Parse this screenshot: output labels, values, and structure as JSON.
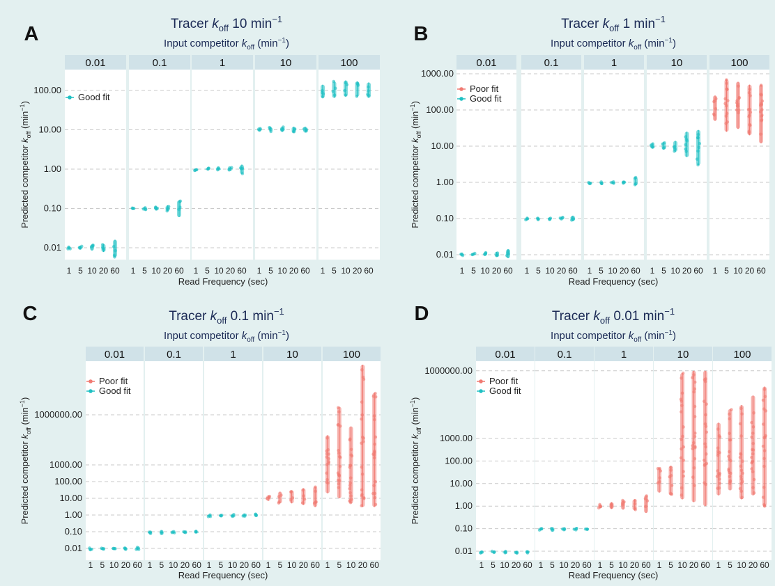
{
  "colors": {
    "poor": "#f07a72",
    "good": "#1fc0c3",
    "background": "#e3f0f0",
    "strip": "#d0e2e8"
  },
  "chart_data": [
    {
      "type": "scatter",
      "panel_label": "A",
      "title": "Tracer k_off 10 min⁻¹",
      "title_parts": [
        "Tracer ",
        "k",
        "off",
        " 10 min",
        "−1"
      ],
      "facet_title": "Input competitor k_off (min⁻¹)",
      "facet_title_parts": [
        "Input competitor ",
        "k",
        "off",
        " (min",
        "−1",
        ")"
      ],
      "facets": [
        "0.01",
        "0.1",
        "1",
        "10",
        "100"
      ],
      "x_categories": [
        "1",
        "5",
        "10",
        "20",
        "60"
      ],
      "xlabel": "Read Frequency (sec)",
      "ylabel": "Predicted competitor k_off (min⁻¹)",
      "ylabel_parts": [
        "Predicted competitor ",
        "k",
        "off",
        " (min",
        "−1",
        ")"
      ],
      "y_scale": "log10",
      "y_ticks": [
        "0.01",
        "0.10",
        "1.00",
        "10.00",
        "100.00"
      ],
      "ylim": [
        0.0045,
        400
      ],
      "legend": [
        "Good fit"
      ],
      "legend_position": "top-left",
      "series": [
        {
          "name": "Good fit",
          "ranges": [
            [
              [
                0.0095,
                0.0105
              ],
              [
                0.009,
                0.0112
              ],
              [
                0.0085,
                0.0118
              ],
              [
                0.0078,
                0.0125
              ],
              [
                0.0058,
                0.016
              ]
            ],
            [
              [
                0.095,
                0.105
              ],
              [
                0.092,
                0.108
              ],
              [
                0.09,
                0.112
              ],
              [
                0.085,
                0.12
              ],
              [
                0.06,
                0.16
              ]
            ],
            [
              [
                0.96,
                1.04
              ],
              [
                0.94,
                1.06
              ],
              [
                0.93,
                1.08
              ],
              [
                0.9,
                1.12
              ],
              [
                0.75,
                1.3
              ]
            ],
            [
              [
                9.2,
                10.8
              ],
              [
                9,
                11.5
              ],
              [
                8.8,
                12
              ],
              [
                8.5,
                12
              ],
              [
                8.5,
                12
              ]
            ],
            [
              [
                65,
                140
              ],
              [
                65,
                170
              ],
              [
                70,
                180
              ],
              [
                70,
                170
              ],
              [
                65,
                160
              ]
            ]
          ]
        }
      ]
    },
    {
      "type": "scatter",
      "panel_label": "B",
      "title": "Tracer k_off 1 min⁻¹",
      "title_parts": [
        "Tracer ",
        "k",
        "off",
        " 1 min",
        "−1"
      ],
      "facet_title": "Input competitor k_off (min⁻¹)",
      "facet_title_parts": [
        "Input competitor ",
        "k",
        "off",
        " (min",
        "−1",
        ")"
      ],
      "facets": [
        "0.01",
        "0.1",
        "1",
        "10",
        "100"
      ],
      "x_categories": [
        "1",
        "5",
        "10",
        "20",
        "60"
      ],
      "xlabel": "Read Frequency (sec)",
      "ylabel": "Predicted competitor k_off (min⁻¹)",
      "ylabel_parts": [
        "Predicted competitor ",
        "k",
        "off",
        " (min",
        "−1",
        ")"
      ],
      "y_scale": "log10",
      "y_ticks": [
        "0.01",
        "0.10",
        "1.00",
        "10.00",
        "100.00",
        "1000.00"
      ],
      "ylim": [
        0.006,
        1200
      ],
      "legend": [
        "Poor fit",
        "Good fit"
      ],
      "legend_position": "top-left",
      "series": [
        {
          "name": "Poor fit",
          "ranges": [
            null,
            null,
            null,
            null,
            [
              [
                50,
                250
              ],
              [
                25,
                700
              ],
              [
                30,
                600
              ],
              [
                20,
                500
              ],
              [
                12,
                500
              ]
            ]
          ]
        },
        {
          "name": "Good fit",
          "ranges": [
            [
              [
                0.0098,
                0.0106
              ],
              [
                0.0096,
                0.011
              ],
              [
                0.0094,
                0.0115
              ],
              [
                0.009,
                0.012
              ],
              [
                0.008,
                0.014
              ]
            ],
            [
              [
                0.097,
                0.103
              ],
              [
                0.096,
                0.105
              ],
              [
                0.095,
                0.107
              ],
              [
                0.094,
                0.11
              ],
              [
                0.085,
                0.12
              ]
            ],
            [
              [
                0.97,
                1.03
              ],
              [
                0.96,
                1.04
              ],
              [
                0.95,
                1.05
              ],
              [
                0.92,
                1.08
              ],
              [
                0.82,
                1.4
              ]
            ],
            [
              [
                8.5,
                12
              ],
              [
                8,
                13
              ],
              [
                7,
                14
              ],
              [
                5,
                25
              ],
              [
                3,
                28
              ]
            ],
            null
          ]
        }
      ]
    },
    {
      "type": "scatter",
      "panel_label": "C",
      "title": "Tracer k_off 0.1 min⁻¹",
      "title_parts": [
        "Tracer ",
        "k",
        "off",
        " 0.1 min",
        "−1"
      ],
      "facet_title": "Input competitor k_off (min⁻¹)",
      "facet_title_parts": [
        "Input competitor ",
        "k",
        "off",
        " (min",
        "−1",
        ")"
      ],
      "facets": [
        "0.01",
        "0.1",
        "1",
        "10",
        "100"
      ],
      "x_categories": [
        "1",
        "5",
        "10",
        "20",
        "60"
      ],
      "xlabel": "Read Frequency (sec)",
      "ylabel": "Predicted competitor k_off (min⁻¹)",
      "ylabel_parts": [
        "Predicted competitor ",
        "k",
        "off",
        " (min",
        "−1",
        ")"
      ],
      "y_scale": "log10",
      "y_ticks": [
        "0.01",
        "0.10",
        "1.00",
        "10.00",
        "100.00",
        "1000.00",
        "1000000.00"
      ],
      "ylim": [
        0.006,
        3000000000.0
      ],
      "legend": [
        "Poor fit",
        "Good fit"
      ],
      "legend_position": "top-left",
      "series": [
        {
          "name": "Poor fit",
          "ranges": [
            null,
            null,
            null,
            [
              [
                7,
                15
              ],
              [
                5,
                25
              ],
              [
                5,
                30
              ],
              [
                4,
                40
              ],
              [
                3,
                50
              ]
            ],
            [
              [
                20,
                60000
              ],
              [
                10,
                3000000
              ],
              [
                5,
                200000
              ],
              [
                3,
                1000000000
              ],
              [
                3,
                20000000
              ]
            ]
          ]
        },
        {
          "name": "Good fit",
          "ranges": [
            [
              [
                0.0095,
                0.0106
              ],
              [
                0.0094,
                0.0108
              ],
              [
                0.0093,
                0.011
              ],
              [
                0.0092,
                0.011
              ],
              [
                0.008,
                0.012
              ]
            ],
            [
              [
                0.097,
                0.103
              ],
              [
                0.096,
                0.104
              ],
              [
                0.096,
                0.104
              ],
              [
                0.095,
                0.105
              ],
              [
                0.094,
                0.107
              ]
            ],
            [
              [
                0.95,
                1.05
              ],
              [
                0.94,
                1.06
              ],
              [
                0.93,
                1.07
              ],
              [
                0.92,
                1.08
              ],
              [
                0.85,
                1.2
              ]
            ],
            null,
            null
          ]
        }
      ]
    },
    {
      "type": "scatter",
      "panel_label": "D",
      "title": "Tracer k_off 0.01 min⁻¹",
      "title_parts": [
        "Tracer ",
        "k",
        "off",
        " 0.01 min",
        "−1"
      ],
      "facet_title": "Input competitor k_off (min⁻¹)",
      "facet_title_parts": [
        "Input competitor ",
        "k",
        "off",
        " (min",
        "−1",
        ")"
      ],
      "facets": [
        "0.01",
        "0.1",
        "1",
        "10",
        "100"
      ],
      "x_categories": [
        "1",
        "5",
        "10",
        "20",
        "60"
      ],
      "xlabel": "Read Frequency (sec)",
      "ylabel": "Predicted competitor k_off (min⁻¹)",
      "ylabel_parts": [
        "Predicted competitor ",
        "k",
        "off",
        " (min",
        "−1",
        ")"
      ],
      "y_scale": "log10",
      "y_ticks": [
        "0.01",
        "0.10",
        "1.00",
        "10.00",
        "100.00",
        "1000.00",
        "1000000.00"
      ],
      "ylim": [
        0.006,
        2500000
      ],
      "legend": [
        "Poor fit",
        "Good fit"
      ],
      "legend_position": "top-left",
      "series": [
        {
          "name": "Poor fit",
          "ranges": [
            null,
            null,
            [
              [
                0.8,
                1.2
              ],
              [
                0.75,
                1.5
              ],
              [
                0.7,
                1.8
              ],
              [
                0.65,
                2
              ],
              [
                0.5,
                3
              ]
            ],
            [
              [
                4,
                50
              ],
              [
                3,
                60
              ],
              [
                2,
                800000
              ],
              [
                1.5,
                1000000
              ],
              [
                1,
                1000000
              ]
            ],
            [
              [
                3,
                5000
              ],
              [
                5,
                20000
              ],
              [
                2,
                30000
              ],
              [
                3,
                80000
              ],
              [
                1,
                200000
              ]
            ]
          ]
        },
        {
          "name": "Good fit",
          "ranges": [
            [
              [
                0.0098,
                0.0102
              ],
              [
                0.0098,
                0.0102
              ],
              [
                0.0098,
                0.0102
              ],
              [
                0.0098,
                0.0102
              ],
              [
                0.0097,
                0.0103
              ]
            ],
            [
              [
                0.097,
                0.103
              ],
              [
                0.096,
                0.104
              ],
              [
                0.095,
                0.105
              ],
              [
                0.094,
                0.106
              ],
              [
                0.09,
                0.11
              ]
            ],
            null,
            null,
            null
          ]
        }
      ]
    }
  ]
}
